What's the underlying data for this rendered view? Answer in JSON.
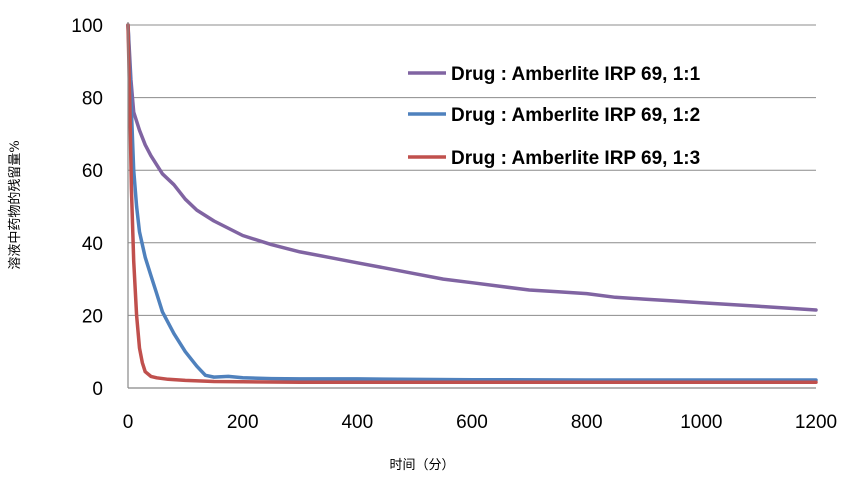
{
  "chart_data": {
    "type": "line",
    "title": "",
    "xlabel": "时间（分）",
    "ylabel": "溶液中药物的残留量%",
    "xlim": [
      0,
      1200
    ],
    "ylim": [
      0,
      100
    ],
    "x_ticks": [
      0,
      200,
      400,
      600,
      800,
      1000,
      1200
    ],
    "y_ticks": [
      0,
      20,
      40,
      60,
      80,
      100
    ],
    "grid": "horizontal",
    "legend_position": "top-right",
    "series": [
      {
        "name": "Drug : Amberlite IRP 69, 1:1",
        "color": "#8064a2",
        "points": [
          [
            0,
            100
          ],
          [
            5,
            85
          ],
          [
            10,
            76
          ],
          [
            20,
            71
          ],
          [
            30,
            67
          ],
          [
            40,
            64
          ],
          [
            60,
            59
          ],
          [
            80,
            56
          ],
          [
            100,
            52
          ],
          [
            120,
            49
          ],
          [
            150,
            46
          ],
          [
            200,
            42
          ],
          [
            250,
            39.5
          ],
          [
            300,
            37.5
          ],
          [
            350,
            36
          ],
          [
            400,
            34.5
          ],
          [
            450,
            33
          ],
          [
            500,
            31.5
          ],
          [
            550,
            30
          ],
          [
            600,
            29
          ],
          [
            650,
            28
          ],
          [
            700,
            27
          ],
          [
            750,
            26.5
          ],
          [
            800,
            26
          ],
          [
            850,
            25
          ],
          [
            900,
            24.5
          ],
          [
            950,
            24
          ],
          [
            1000,
            23.5
          ],
          [
            1050,
            23
          ],
          [
            1100,
            22.5
          ],
          [
            1150,
            22
          ],
          [
            1200,
            21.5
          ]
        ]
      },
      {
        "name": "Drug : Amberlite IRP 69, 1:2",
        "color": "#4f81bd",
        "points": [
          [
            0,
            100
          ],
          [
            5,
            80
          ],
          [
            10,
            60
          ],
          [
            15,
            50
          ],
          [
            20,
            43
          ],
          [
            30,
            36
          ],
          [
            40,
            31
          ],
          [
            50,
            26
          ],
          [
            60,
            21
          ],
          [
            80,
            15
          ],
          [
            100,
            10
          ],
          [
            120,
            6
          ],
          [
            135,
            3.5
          ],
          [
            150,
            3
          ],
          [
            175,
            3.2
          ],
          [
            200,
            2.8
          ],
          [
            250,
            2.6
          ],
          [
            300,
            2.5
          ],
          [
            400,
            2.5
          ],
          [
            600,
            2.3
          ],
          [
            800,
            2.2
          ],
          [
            1000,
            2.2
          ],
          [
            1200,
            2.2
          ]
        ]
      },
      {
        "name": "Drug : Amberlite IRP 69, 1:3",
        "color": "#c0504d",
        "points": [
          [
            0,
            100
          ],
          [
            3,
            80
          ],
          [
            6,
            55
          ],
          [
            10,
            35
          ],
          [
            15,
            20
          ],
          [
            20,
            11
          ],
          [
            25,
            7
          ],
          [
            30,
            4.5
          ],
          [
            40,
            3.2
          ],
          [
            50,
            2.8
          ],
          [
            70,
            2.4
          ],
          [
            100,
            2.1
          ],
          [
            150,
            1.8
          ],
          [
            200,
            1.7
          ],
          [
            300,
            1.6
          ],
          [
            500,
            1.6
          ],
          [
            800,
            1.6
          ],
          [
            1000,
            1.6
          ],
          [
            1200,
            1.6
          ]
        ]
      }
    ]
  }
}
